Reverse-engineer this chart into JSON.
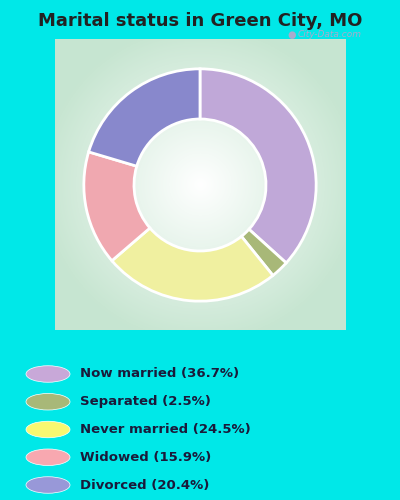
{
  "title": "Marital status in Green City, MO",
  "slices": [
    {
      "label": "Now married (36.7%)",
      "value": 36.7,
      "color": "#c0a8d8"
    },
    {
      "label": "Separated (2.5%)",
      "value": 2.5,
      "color": "#a8b878"
    },
    {
      "label": "Never married (24.5%)",
      "value": 24.5,
      "color": "#f0f0a0"
    },
    {
      "label": "Widowed (15.9%)",
      "value": 15.9,
      "color": "#f0a8b0"
    },
    {
      "label": "Divorced (20.4%)",
      "value": 20.4,
      "color": "#8888cc"
    }
  ],
  "bg_color": "#00e8e8",
  "chart_border_color": "#e0e8e0",
  "title_fontsize": 13,
  "donut_width": 0.38,
  "start_angle": 90,
  "watermark": "City-Data.com",
  "legend_circle_colors": [
    "#c8a8d8",
    "#a8b878",
    "#f8f870",
    "#f8a8b0",
    "#9898d8"
  ]
}
